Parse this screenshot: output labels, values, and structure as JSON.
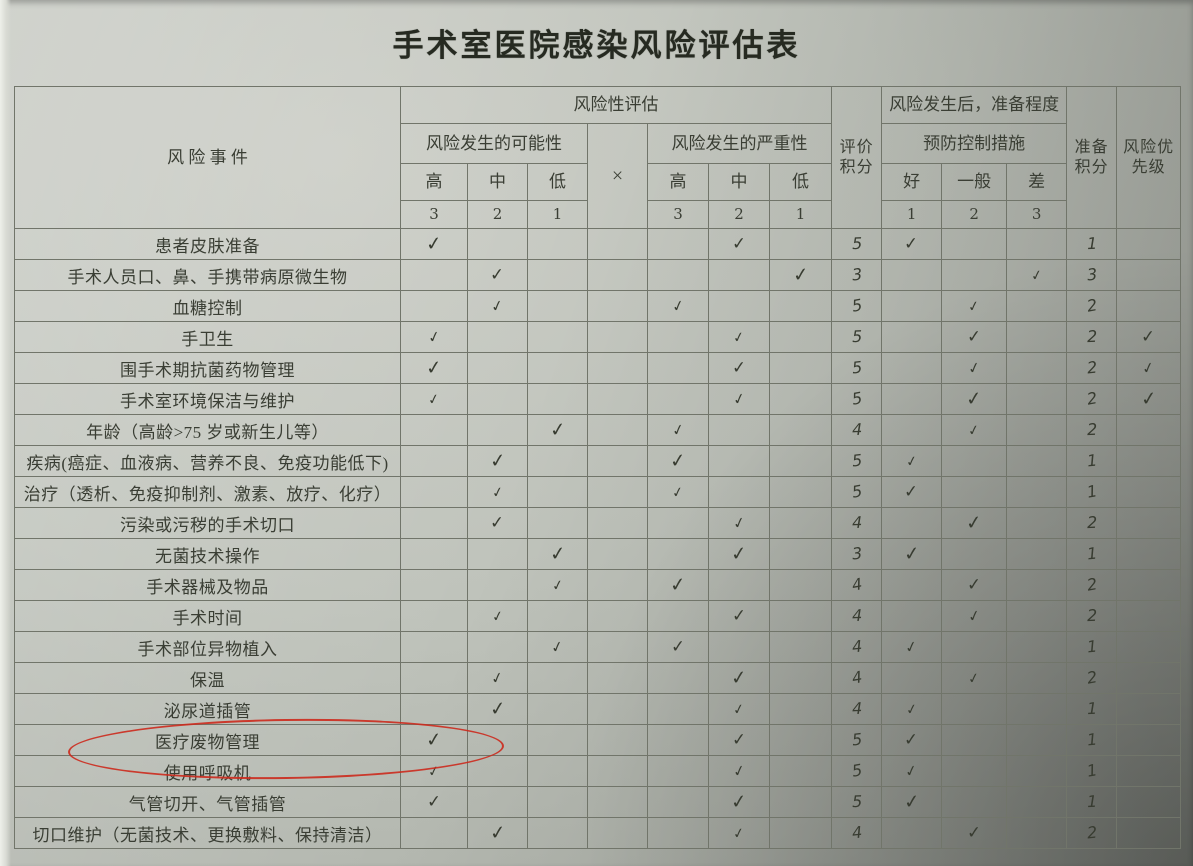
{
  "title": "手术室医院感染风险评估表",
  "colors": {
    "paper": "#bfc3bb",
    "grid_line": "#71756a",
    "printed_ink": "#3a3e34",
    "pen_ink": "#383c31",
    "red_circle": "#cc2a1d"
  },
  "annotations": {
    "red_circle": {
      "shape": "hand-drawn-ellipse",
      "target_row": "医疗废物管理",
      "circles": "row label and possibility-high checkmark"
    }
  },
  "table": {
    "check_glyph": "✓",
    "header": {
      "risk_event": "风 险 事 件",
      "risk_assessment": "风险性评估",
      "possibility": "风险发生的可能性",
      "possibility_levels": [
        "高",
        "中",
        "低"
      ],
      "possibility_scores": [
        "3",
        "2",
        "1"
      ],
      "multiply": "×",
      "severity": "风险发生的严重性",
      "severity_levels": [
        "高",
        "中",
        "低"
      ],
      "severity_scores": [
        "3",
        "2",
        "1"
      ],
      "eval_score": "评价积分",
      "after_risk": "风险发生后，准备程度",
      "prevention": "预防控制措施",
      "prevention_levels": [
        "好",
        "一般",
        "差"
      ],
      "prevention_scores": [
        "1",
        "2",
        "3"
      ],
      "prep_score": "准备积分",
      "priority": "风险优先级"
    },
    "rows": [
      {
        "event": "患者皮肤准备",
        "possibility": "高",
        "severity": "中",
        "eval_score": "5",
        "prevention": "好",
        "prep_score": "1",
        "priority": ""
      },
      {
        "event": "手术人员口、鼻、手携带病原微生物",
        "possibility": "中",
        "severity": "低",
        "eval_score": "3",
        "prevention": "差",
        "prep_score": "3",
        "priority": ""
      },
      {
        "event": "血糖控制",
        "possibility": "中",
        "severity": "高",
        "eval_score": "5",
        "prevention": "一般",
        "prep_score": "2",
        "priority": ""
      },
      {
        "event": "手卫生",
        "possibility": "高",
        "severity": "中",
        "eval_score": "5",
        "prevention": "一般",
        "prep_score": "2",
        "priority": "✓"
      },
      {
        "event": "围手术期抗菌药物管理",
        "possibility": "高",
        "severity": "中",
        "eval_score": "5",
        "prevention": "一般",
        "prep_score": "2",
        "priority": "✓"
      },
      {
        "event": "手术室环境保洁与维护",
        "possibility": "高",
        "severity": "中",
        "eval_score": "5",
        "prevention": "一般",
        "prep_score": "2",
        "priority": "✓"
      },
      {
        "event": "年龄（高龄>75 岁或新生儿等）",
        "possibility": "低",
        "severity": "高",
        "eval_score": "4",
        "prevention": "一般",
        "prep_score": "2",
        "priority": ""
      },
      {
        "event": "疾病(癌症、血液病、营养不良、免疫功能低下)",
        "possibility": "中",
        "severity": "高",
        "eval_score": "5",
        "prevention": "好",
        "prep_score": "1",
        "priority": ""
      },
      {
        "event": "治疗（透析、免疫抑制剂、激素、放疗、化疗）",
        "possibility": "中",
        "severity": "高",
        "eval_score": "5",
        "prevention": "好",
        "prep_score": "1",
        "priority": ""
      },
      {
        "event": "污染或污秽的手术切口",
        "possibility": "中",
        "severity": "中",
        "eval_score": "4",
        "prevention": "一般",
        "prep_score": "2",
        "priority": ""
      },
      {
        "event": "无菌技术操作",
        "possibility": "低",
        "severity": "中",
        "eval_score": "3",
        "prevention": "好",
        "prep_score": "1",
        "priority": ""
      },
      {
        "event": "手术器械及物品",
        "possibility": "低",
        "severity": "高",
        "eval_score": "4",
        "prevention": "一般",
        "prep_score": "2",
        "priority": ""
      },
      {
        "event": "手术时间",
        "possibility": "中",
        "severity": "中",
        "eval_score": "4",
        "prevention": "一般",
        "prep_score": "2",
        "priority": ""
      },
      {
        "event": "手术部位异物植入",
        "possibility": "低",
        "severity": "高",
        "eval_score": "4",
        "prevention": "好",
        "prep_score": "1",
        "priority": ""
      },
      {
        "event": "保温",
        "possibility": "中",
        "severity": "中",
        "eval_score": "4",
        "prevention": "一般",
        "prep_score": "2",
        "priority": ""
      },
      {
        "event": "泌尿道插管",
        "possibility": "中",
        "severity": "中",
        "eval_score": "4",
        "prevention": "好",
        "prep_score": "1",
        "priority": ""
      },
      {
        "event": "医疗废物管理",
        "possibility": "高",
        "severity": "中",
        "eval_score": "5",
        "prevention": "好",
        "prep_score": "1",
        "priority": ""
      },
      {
        "event": "使用呼吸机",
        "possibility": "高",
        "severity": "中",
        "eval_score": "5",
        "prevention": "好",
        "prep_score": "1",
        "priority": ""
      },
      {
        "event": "气管切开、气管插管",
        "possibility": "高",
        "severity": "中",
        "eval_score": "5",
        "prevention": "好",
        "prep_score": "1",
        "priority": ""
      },
      {
        "event": "切口维护（无菌技术、更换敷料、保持清洁）",
        "possibility": "中",
        "severity": "中",
        "eval_score": "4",
        "prevention": "一般",
        "prep_score": "2",
        "priority": ""
      }
    ]
  }
}
